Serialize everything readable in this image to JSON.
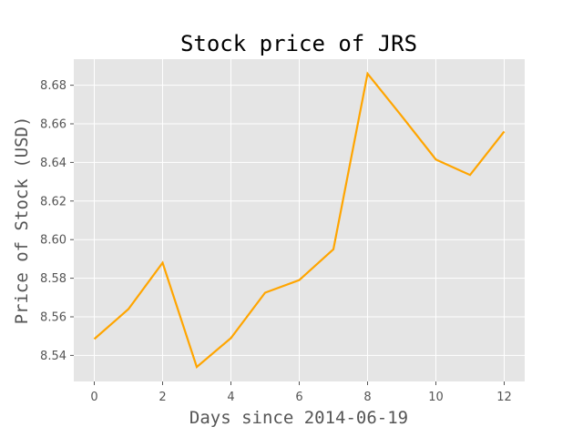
{
  "chart_data": {
    "type": "line",
    "title": "Stock price of JRS",
    "xlabel": "Days since 2014-06-19",
    "ylabel": "Price of Stock (USD)",
    "x": [
      0,
      1,
      2,
      3,
      4,
      5,
      6,
      7,
      8,
      9,
      10,
      11,
      12
    ],
    "series": [
      {
        "values": [
          8.5485,
          8.564,
          8.588,
          8.534,
          8.549,
          8.5725,
          8.579,
          8.595,
          8.686,
          8.664,
          8.6415,
          8.6335,
          8.656
        ],
        "color": "#FFA500"
      }
    ],
    "xticks": [
      0,
      2,
      4,
      6,
      8,
      10,
      12
    ],
    "xtick_labels": [
      "0",
      "2",
      "4",
      "6",
      "8",
      "10",
      "12"
    ],
    "yticks": [
      8.54,
      8.56,
      8.58,
      8.6,
      8.62,
      8.64,
      8.66,
      8.68
    ],
    "ytick_labels": [
      "8.54",
      "8.56",
      "8.58",
      "8.60",
      "8.62",
      "8.64",
      "8.66",
      "8.68"
    ],
    "xlim": [
      -0.6,
      12.6
    ],
    "ylim": [
      8.5265,
      8.6935
    ],
    "grid": true,
    "style": {
      "plot_background": "#E5E5E5",
      "grid_color": "#FFFFFF",
      "tick_color": "#555555"
    }
  }
}
